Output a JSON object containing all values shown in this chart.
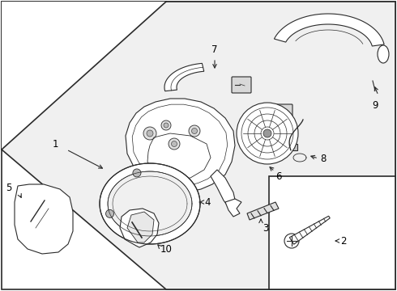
{
  "bg_color": "#ffffff",
  "lc": "#2a2a2a",
  "lc_light": "#555555",
  "fill_bg": "#f0f0f0",
  "fill_white": "#ffffff",
  "fill_gray": "#cccccc",
  "fill_dark": "#888888",
  "lw": 0.8,
  "lw_thick": 1.2,
  "fs": 8.5,
  "figw": 4.9,
  "figh": 3.6,
  "dpi": 100
}
